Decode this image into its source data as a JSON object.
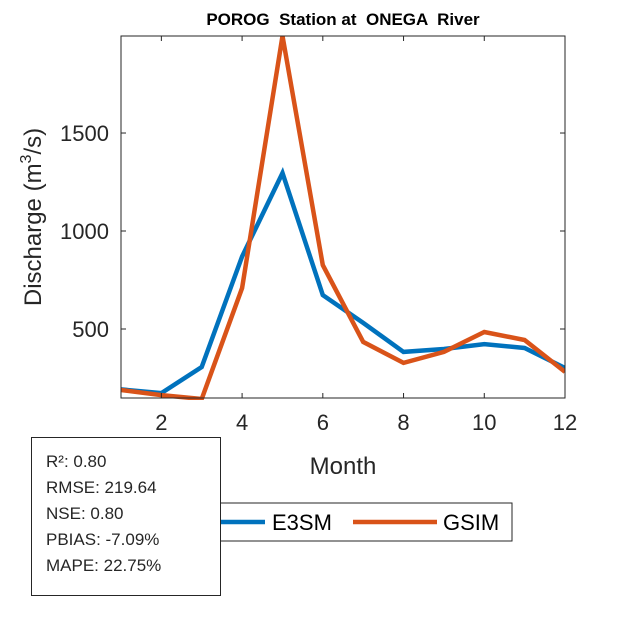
{
  "chart_data": {
    "type": "line",
    "title": "POROG  Station at  ONEGA  River",
    "xlabel": "Month",
    "ylabel": "Discharge (m³/s)",
    "ylabel_parts": {
      "main": "Discharge (m",
      "sup": "3",
      "tail": "/s)"
    },
    "x": [
      1,
      2,
      3,
      4,
      5,
      6,
      7,
      8,
      9,
      10,
      11,
      12
    ],
    "xlim": [
      1,
      12
    ],
    "ylim": [
      148,
      1995
    ],
    "xticks": [
      2,
      4,
      6,
      8,
      10,
      12
    ],
    "yticks": [
      500,
      1000,
      1500
    ],
    "grid": false,
    "series": [
      {
        "name": "E3SM",
        "color": "#0072BD",
        "values": [
          192,
          173,
          306,
          870,
          1296,
          673,
          531,
          383,
          398,
          423,
          403,
          301
        ]
      },
      {
        "name": "GSIM",
        "color": "#D95319",
        "values": [
          189,
          163,
          143,
          709,
          1995,
          826,
          434,
          327,
          383,
          485,
          444,
          281
        ]
      }
    ],
    "legend": {
      "placement": "bottom-center",
      "orientation": "horizontal"
    }
  },
  "stats": [
    "R²: 0.80",
    "RMSE: 219.64",
    "NSE: 0.80",
    "PBIAS: -7.09%",
    "MAPE: 22.75%"
  ]
}
